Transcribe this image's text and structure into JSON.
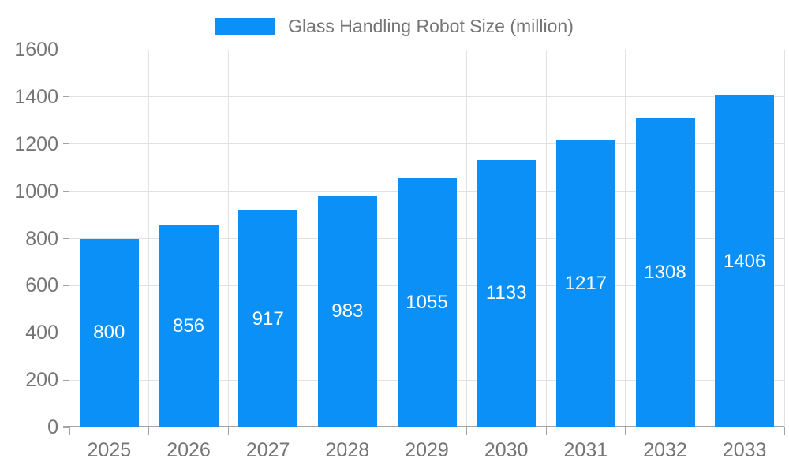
{
  "legend": {
    "label": "Glass Handling Robot Size (million)"
  },
  "colors": {
    "bar": "#0b90f8",
    "grid": "#e2e2e2",
    "axis": "#a3a3a3",
    "tick_text": "#757575",
    "value_text": "#ffffff"
  },
  "chart_data": {
    "type": "bar",
    "title": "Glass Handling Robot Size (million)",
    "categories": [
      "2025",
      "2026",
      "2027",
      "2028",
      "2029",
      "2030",
      "2031",
      "2032",
      "2033"
    ],
    "series": [
      {
        "name": "Glass Handling Robot Size (million)",
        "values": [
          800,
          856,
          917,
          983,
          1055,
          1133,
          1217,
          1308,
          1406
        ]
      }
    ],
    "xlabel": "",
    "ylabel": "",
    "ylim": [
      0,
      1600
    ],
    "ytick_step": 200,
    "yticks": [
      0,
      200,
      400,
      600,
      800,
      1000,
      1200,
      1400,
      1600
    ],
    "grid": true,
    "legend_position": "top-center",
    "value_label_position": "inside-center"
  }
}
